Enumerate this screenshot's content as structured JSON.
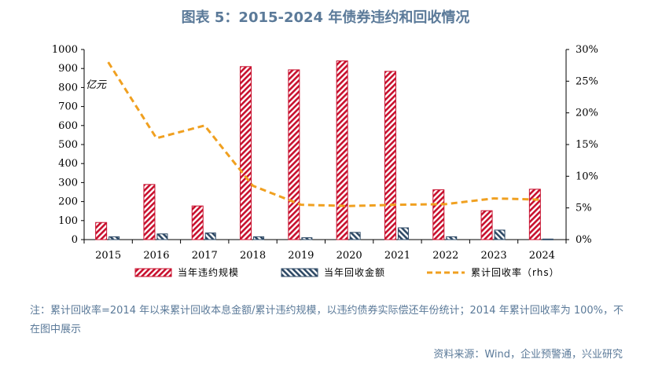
{
  "title": "图表 5：2015-2024 年债券违约和回收情况",
  "chart_data": {
    "type": "bar",
    "categories": [
      "2015",
      "2016",
      "2017",
      "2018",
      "2019",
      "2020",
      "2021",
      "2022",
      "2023",
      "2024"
    ],
    "series": [
      {
        "name": "当年违约规模",
        "type": "bar",
        "axis": "left",
        "color": "#c8102e",
        "pattern": "diagonal-red",
        "values": [
          90,
          290,
          177,
          910,
          893,
          940,
          885,
          262,
          152,
          265
        ]
      },
      {
        "name": "当年回收金额",
        "type": "bar",
        "axis": "left",
        "color": "#2f4a66",
        "pattern": "diagonal-navy",
        "values": [
          15,
          30,
          35,
          15,
          10,
          38,
          62,
          15,
          50,
          3
        ]
      },
      {
        "name": "累计回收率（rhs）",
        "type": "line",
        "axis": "right",
        "color": "#f0a020",
        "dash": true,
        "values": [
          28.0,
          16.0,
          18.0,
          8.5,
          5.5,
          5.3,
          5.5,
          5.6,
          6.5,
          6.3
        ]
      }
    ],
    "y_left": {
      "ylim": [
        0,
        1000
      ],
      "ticks": [
        0,
        100,
        200,
        300,
        400,
        500,
        600,
        700,
        800,
        900,
        1000
      ],
      "unit": "亿元"
    },
    "y_right": {
      "ylim": [
        0,
        30
      ],
      "ticks": [
        "0%",
        "5%",
        "10%",
        "15%",
        "20%",
        "25%",
        "30%"
      ]
    },
    "legend_position": "bottom",
    "grid": false
  },
  "note": "注：累计回收率=2014 年以来累计回收本息金额/累计违约规模，以违约债券实际偿还年份统计；2014 年累计回收率为 100%，不在图中展示",
  "source": "资料来源：Wind，企业预警通，兴业研究"
}
